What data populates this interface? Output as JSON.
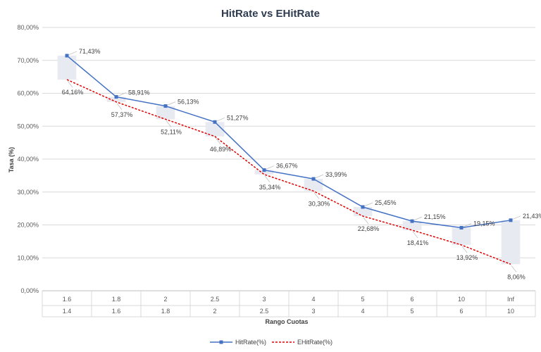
{
  "chart_data": {
    "type": "line",
    "title": "HitRate vs EHitRate",
    "xlabel": "Rango Cuotas",
    "ylabel": "Tasa (%)",
    "ylim": [
      0,
      80
    ],
    "yticks": [
      "0,00%",
      "10,00%",
      "20,00%",
      "30,00%",
      "40,00%",
      "50,00%",
      "60,00%",
      "70,00%",
      "80,00%"
    ],
    "categories_upper": [
      "1.6",
      "1.8",
      "2",
      "2.5",
      "3",
      "4",
      "5",
      "6",
      "10",
      "Inf"
    ],
    "categories_lower": [
      "1.4",
      "1.6",
      "1.8",
      "2",
      "2.5",
      "3",
      "4",
      "5",
      "6",
      "10"
    ],
    "series": [
      {
        "name": "HitRate(%)",
        "color": "#4472c4",
        "style": "solid-with-square-markers",
        "values": [
          71.43,
          58.91,
          56.13,
          51.27,
          36.67,
          33.99,
          25.45,
          21.15,
          19.15,
          21.43
        ],
        "labels": [
          "71,43%",
          "58,91%",
          "56,13%",
          "51,27%",
          "36,67%",
          "33,99%",
          "25,45%",
          "21,15%",
          "19,15%",
          "21,43%"
        ]
      },
      {
        "name": "EHitRate(%)",
        "color": "#e00000",
        "style": "dashed",
        "values": [
          64.16,
          57.37,
          52.11,
          46.89,
          35.34,
          30.3,
          22.68,
          18.41,
          13.92,
          8.06
        ],
        "labels": [
          "64,16%",
          "57,37%",
          "52,11%",
          "46,89%",
          "35,34%",
          "30,30%",
          "22,68%",
          "18,41%",
          "13,92%",
          "8,06%"
        ]
      }
    ],
    "difference_bars": true,
    "gridlines": true,
    "legend_position": "bottom"
  }
}
